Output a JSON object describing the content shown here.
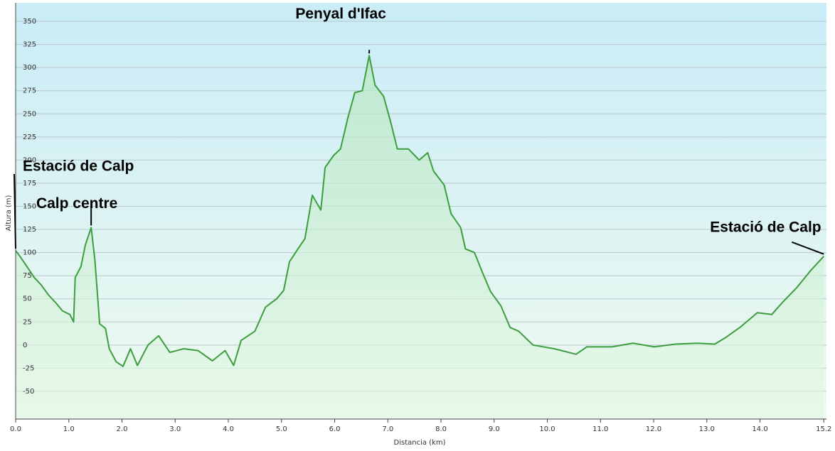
{
  "chart_data": {
    "type": "line",
    "xlabel": "Distancia  (km)",
    "ylabel": "Altura (m)",
    "xlim": [
      0,
      15.25
    ],
    "ylim": [
      -80,
      370
    ],
    "xticks": [
      {
        "value": 0,
        "label": "0.0"
      },
      {
        "value": 1,
        "label": "1.0"
      },
      {
        "value": 2,
        "label": "2.0"
      },
      {
        "value": 3,
        "label": "3.0"
      },
      {
        "value": 4,
        "label": "4.0"
      },
      {
        "value": 5,
        "label": "5.0"
      },
      {
        "value": 6,
        "label": "6.0"
      },
      {
        "value": 7,
        "label": "7.0"
      },
      {
        "value": 8,
        "label": "8.0"
      },
      {
        "value": 9,
        "label": "9.0"
      },
      {
        "value": 10,
        "label": "10.0"
      },
      {
        "value": 11,
        "label": "11.0"
      },
      {
        "value": 12,
        "label": "12.0"
      },
      {
        "value": 13,
        "label": "13.0"
      },
      {
        "value": 14,
        "label": "14.0"
      },
      15.2
    ],
    "yticks": [
      -50,
      -25,
      0,
      25,
      50,
      75,
      100,
      125,
      150,
      175,
      200,
      225,
      250,
      275,
      300,
      325,
      350
    ],
    "grid": true,
    "series": [
      {
        "color": "#3c9e3c",
        "x": [
          0,
          0.08,
          0.21,
          0.35,
          0.48,
          0.62,
          0.75,
          0.88,
          1.02,
          1.09,
          1.12,
          1.23,
          1.31,
          1.42,
          1.49,
          1.58,
          1.69,
          1.76,
          1.89,
          2.02,
          2.16,
          2.29,
          2.49,
          2.69,
          2.9,
          3.16,
          3.43,
          3.7,
          3.94,
          4.1,
          4.24,
          4.5,
          4.7,
          4.91,
          5.04,
          5.15,
          5.31,
          5.44,
          5.58,
          5.74,
          5.82,
          5.98,
          6.11,
          6.25,
          6.38,
          6.52,
          6.65,
          6.76,
          6.92,
          7.05,
          7.18,
          7.39,
          7.59,
          7.75,
          7.86,
          8.06,
          8.19,
          8.37,
          8.46,
          8.63,
          8.79,
          8.93,
          9.13,
          9.3,
          9.46,
          9.73,
          10.13,
          10.54,
          10.74,
          11.21,
          11.61,
          12.01,
          12.41,
          12.82,
          13.15,
          13.35,
          13.62,
          13.95,
          14.22,
          14.42,
          14.69,
          14.96,
          15.2
        ],
        "values": [
          102,
          96,
          85,
          73,
          65,
          54,
          46,
          37,
          33,
          25,
          73,
          85,
          108,
          127,
          92,
          23,
          18,
          -4,
          -18,
          -23,
          -4,
          -22,
          0,
          10,
          -8,
          -4,
          -6,
          -17,
          -6,
          -22,
          5,
          15,
          41,
          50,
          59,
          90,
          104,
          115,
          162,
          146,
          192,
          205,
          212,
          246,
          273,
          275,
          313,
          281,
          269,
          242,
          212,
          212,
          200,
          208,
          188,
          173,
          142,
          127,
          104,
          100,
          77,
          58,
          42,
          19,
          15,
          0,
          -4,
          -10,
          -2,
          -2,
          2,
          -2,
          1,
          2,
          1,
          8,
          19,
          35,
          33,
          46,
          62,
          81,
          96
        ]
      }
    ],
    "annotations": [
      {
        "text": "Estació de Calp",
        "x": 0,
        "y": 102
      },
      {
        "text": "Calp centre",
        "x": 1.42,
        "y": 127
      },
      {
        "text": "Penyal d'Ifac",
        "x": 6.65,
        "y": 313
      },
      {
        "text": "Estació de Calp",
        "x": 15.2,
        "y": 96
      }
    ]
  }
}
